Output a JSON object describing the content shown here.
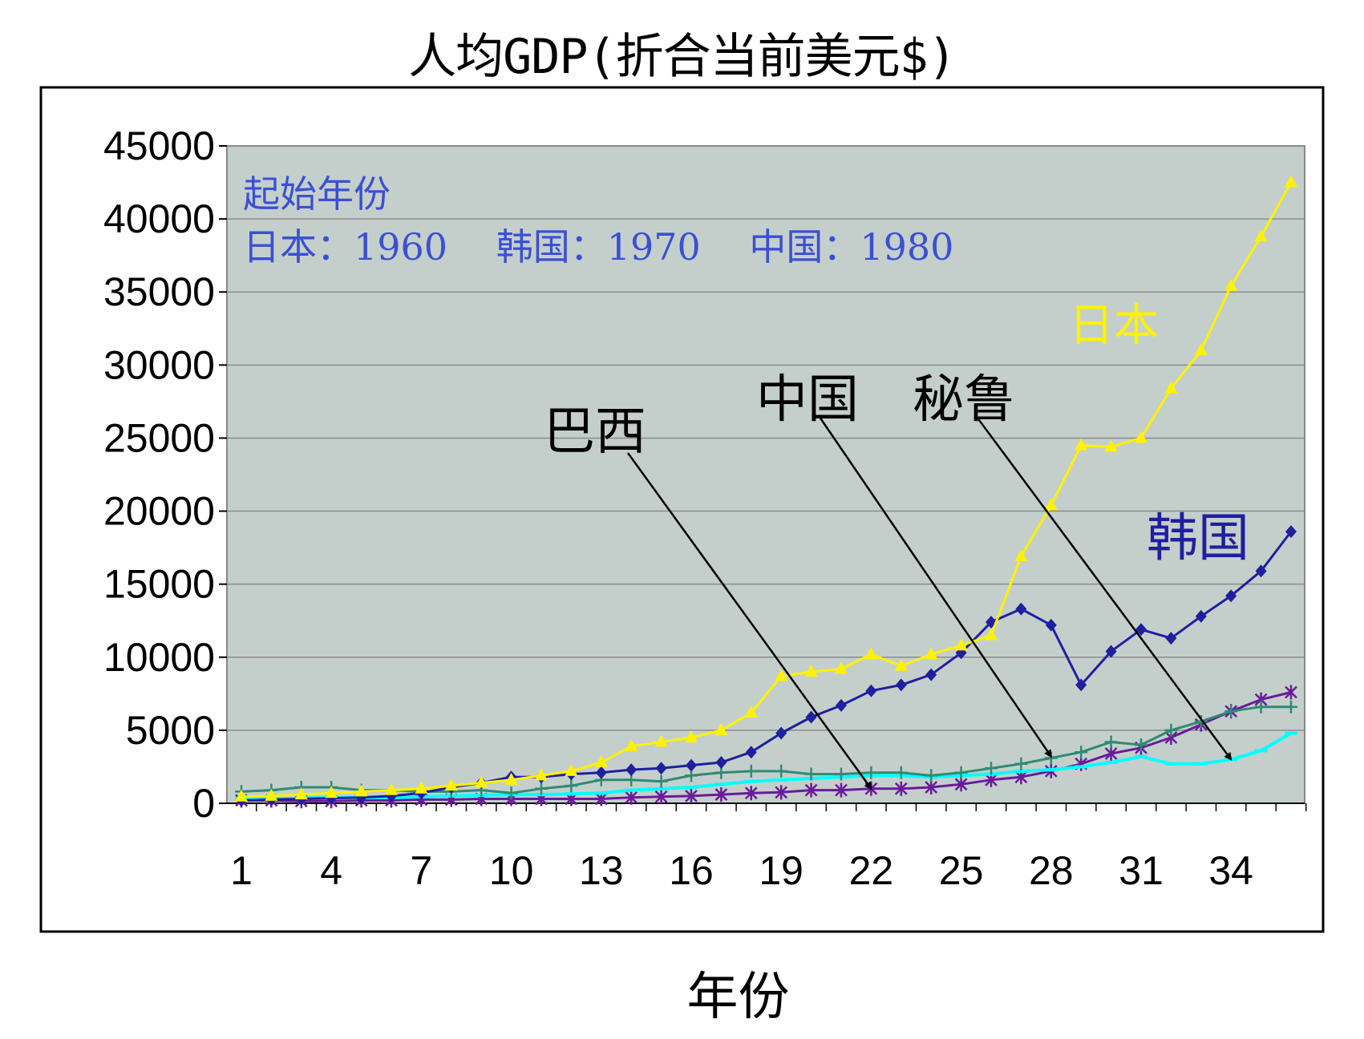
{
  "chart_data": {
    "type": "line",
    "title": "人均GDP(折合当前美元$)",
    "xlabel": "年份",
    "ylabel": "",
    "x": [
      1,
      2,
      3,
      4,
      5,
      6,
      7,
      8,
      9,
      10,
      11,
      12,
      13,
      14,
      15,
      16,
      17,
      18,
      19,
      20,
      21,
      22,
      23,
      24,
      25,
      26,
      27,
      28,
      29,
      30,
      31,
      32,
      33,
      34,
      35,
      36
    ],
    "xticks": [
      1,
      4,
      7,
      10,
      13,
      16,
      19,
      22,
      25,
      28,
      31,
      34
    ],
    "ylim": [
      0,
      45000
    ],
    "yticks": [
      0,
      5000,
      10000,
      15000,
      20000,
      25000,
      30000,
      35000,
      40000,
      45000
    ],
    "grid": "horizontal",
    "note_lines": [
      "起始年份",
      "日本：1960　 韩国：1970　 中国：1980"
    ],
    "series": [
      {
        "name": "日本",
        "color": "#FFF200",
        "marker": "triangle",
        "values": [
          450,
          500,
          600,
          700,
          800,
          900,
          1000,
          1200,
          1400,
          1600,
          1900,
          2200,
          2800,
          3900,
          4200,
          4500,
          5000,
          6200,
          8700,
          9000,
          9200,
          10200,
          9400,
          10200,
          10800,
          11500,
          16900,
          20400,
          24500,
          24400,
          25000,
          28400,
          31000,
          35400,
          38800,
          42500
        ]
      },
      {
        "name": "韩国",
        "color": "#1F1F9F",
        "marker": "diamond",
        "values": [
          200,
          250,
          300,
          350,
          400,
          500,
          700,
          1100,
          1400,
          1800,
          1800,
          2000,
          2100,
          2300,
          2400,
          2600,
          2800,
          3500,
          4800,
          5900,
          6700,
          7700,
          8100,
          8800,
          10300,
          12400,
          13300,
          12200,
          8100,
          10400,
          11900,
          11300,
          12800,
          14200,
          15900,
          18600
        ]
      },
      {
        "name": "巴西",
        "color": "#2E8B73",
        "marker": "plus",
        "values": [
          800,
          900,
          1100,
          1100,
          900,
          900,
          800,
          800,
          900,
          700,
          1000,
          1200,
          1600,
          1600,
          1500,
          1900,
          2100,
          2200,
          2200,
          2000,
          2000,
          2100,
          2100,
          1900,
          2100,
          2400,
          2700,
          3100,
          3500,
          4200,
          4000,
          5000,
          5600,
          6300,
          6600,
          6600
        ]
      },
      {
        "name": "秘鲁",
        "color": "#00FFFF",
        "marker": "dash",
        "values": [
          300,
          300,
          350,
          400,
          400,
          400,
          450,
          500,
          550,
          600,
          600,
          650,
          700,
          900,
          1000,
          1100,
          1300,
          1500,
          1600,
          1700,
          1800,
          1900,
          1900,
          1800,
          1900,
          2000,
          2200,
          2300,
          2500,
          2800,
          3200,
          2700,
          2700,
          3000,
          3600,
          4800
        ]
      },
      {
        "name": "中国",
        "color": "#6A1B9A",
        "marker": "asterisk",
        "values": [
          200,
          200,
          150,
          150,
          200,
          200,
          250,
          250,
          300,
          300,
          300,
          300,
          300,
          400,
          450,
          500,
          600,
          700,
          750,
          900,
          900,
          1000,
          1000,
          1100,
          1300,
          1600,
          1800,
          2200,
          2700,
          3400,
          3800,
          4500,
          5400,
          6300,
          7100,
          7600
        ]
      }
    ],
    "annotations": [
      {
        "text": "日本",
        "color": "#FFF200",
        "target": "日本"
      },
      {
        "text": "韩国",
        "color": "#1F1F9F",
        "target": "韩国"
      },
      {
        "text": "巴西",
        "color": "#000000",
        "arrow_to_x": 22,
        "arrow_to_y": 1000
      },
      {
        "text": "中国",
        "color": "#000000",
        "arrow_to_x": 28,
        "arrow_to_y": 3200
      },
      {
        "text": "秘鲁",
        "color": "#000000",
        "arrow_to_x": 34,
        "arrow_to_y": 3000
      }
    ]
  }
}
